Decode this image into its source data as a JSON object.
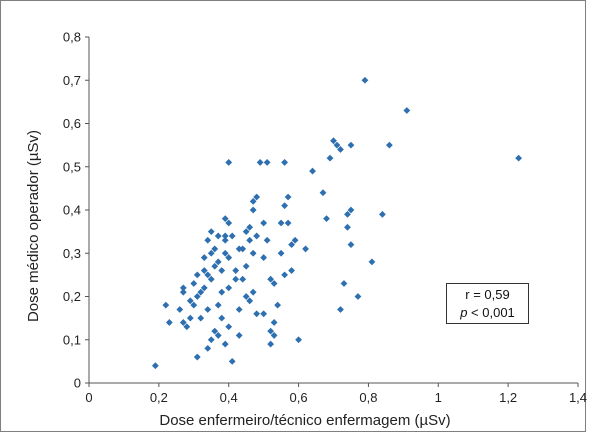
{
  "chart_data": {
    "type": "scatter",
    "title": "",
    "xlabel": "Dose enfermeiro/técnico enfermagem (µSv)",
    "ylabel": "Dose médico operador (µSv)",
    "xlim": [
      0,
      1.4
    ],
    "ylim": [
      0,
      0.8
    ],
    "xticks": [
      "0",
      "0,2",
      "0,4",
      "0,6",
      "0,8",
      "1",
      "1,2",
      "1,4"
    ],
    "yticks": [
      "0",
      "0,1",
      "0,2",
      "0,3",
      "0,4",
      "0,5",
      "0,6",
      "0,7",
      "0,8"
    ],
    "grid": false,
    "marker_color": "#2e6fb0",
    "annotation": {
      "r": "r = 0,59",
      "p_symbol": "p",
      "p_rest": " < 0,001"
    },
    "points": [
      [
        0.19,
        0.04
      ],
      [
        0.22,
        0.18
      ],
      [
        0.23,
        0.14
      ],
      [
        0.26,
        0.17
      ],
      [
        0.27,
        0.14
      ],
      [
        0.27,
        0.21
      ],
      [
        0.27,
        0.22
      ],
      [
        0.28,
        0.13
      ],
      [
        0.29,
        0.15
      ],
      [
        0.29,
        0.19
      ],
      [
        0.3,
        0.23
      ],
      [
        0.3,
        0.18
      ],
      [
        0.31,
        0.06
      ],
      [
        0.31,
        0.2
      ],
      [
        0.31,
        0.25
      ],
      [
        0.32,
        0.21
      ],
      [
        0.32,
        0.15
      ],
      [
        0.33,
        0.29
      ],
      [
        0.33,
        0.22
      ],
      [
        0.33,
        0.26
      ],
      [
        0.34,
        0.17
      ],
      [
        0.34,
        0.25
      ],
      [
        0.34,
        0.33
      ],
      [
        0.34,
        0.08
      ],
      [
        0.35,
        0.1
      ],
      [
        0.35,
        0.24
      ],
      [
        0.35,
        0.3
      ],
      [
        0.35,
        0.35
      ],
      [
        0.36,
        0.27
      ],
      [
        0.36,
        0.12
      ],
      [
        0.36,
        0.31
      ],
      [
        0.37,
        0.28
      ],
      [
        0.37,
        0.34
      ],
      [
        0.37,
        0.18
      ],
      [
        0.37,
        0.11
      ],
      [
        0.38,
        0.21
      ],
      [
        0.38,
        0.15
      ],
      [
        0.38,
        0.26
      ],
      [
        0.39,
        0.34
      ],
      [
        0.39,
        0.33
      ],
      [
        0.39,
        0.3
      ],
      [
        0.39,
        0.09
      ],
      [
        0.39,
        0.38
      ],
      [
        0.4,
        0.22
      ],
      [
        0.4,
        0.13
      ],
      [
        0.4,
        0.29
      ],
      [
        0.4,
        0.37
      ],
      [
        0.4,
        0.51
      ],
      [
        0.41,
        0.34
      ],
      [
        0.41,
        0.05
      ],
      [
        0.42,
        0.24
      ],
      [
        0.42,
        0.26
      ],
      [
        0.43,
        0.31
      ],
      [
        0.43,
        0.17
      ],
      [
        0.43,
        0.11
      ],
      [
        0.44,
        0.31
      ],
      [
        0.44,
        0.24
      ],
      [
        0.45,
        0.35
      ],
      [
        0.45,
        0.27
      ],
      [
        0.45,
        0.2
      ],
      [
        0.46,
        0.33
      ],
      [
        0.46,
        0.36
      ],
      [
        0.46,
        0.19
      ],
      [
        0.47,
        0.4
      ],
      [
        0.47,
        0.42
      ],
      [
        0.47,
        0.3
      ],
      [
        0.47,
        0.21
      ],
      [
        0.48,
        0.43
      ],
      [
        0.48,
        0.16
      ],
      [
        0.48,
        0.34
      ],
      [
        0.49,
        0.51
      ],
      [
        0.5,
        0.29
      ],
      [
        0.5,
        0.16
      ],
      [
        0.5,
        0.37
      ],
      [
        0.51,
        0.51
      ],
      [
        0.51,
        0.33
      ],
      [
        0.52,
        0.24
      ],
      [
        0.52,
        0.12
      ],
      [
        0.52,
        0.09
      ],
      [
        0.53,
        0.23
      ],
      [
        0.53,
        0.11
      ],
      [
        0.53,
        0.14
      ],
      [
        0.54,
        0.18
      ],
      [
        0.55,
        0.3
      ],
      [
        0.55,
        0.37
      ],
      [
        0.56,
        0.51
      ],
      [
        0.56,
        0.41
      ],
      [
        0.56,
        0.25
      ],
      [
        0.57,
        0.43
      ],
      [
        0.57,
        0.37
      ],
      [
        0.58,
        0.32
      ],
      [
        0.58,
        0.26
      ],
      [
        0.59,
        0.33
      ],
      [
        0.6,
        0.1
      ],
      [
        0.62,
        0.31
      ],
      [
        0.64,
        0.49
      ],
      [
        0.67,
        0.44
      ],
      [
        0.68,
        0.38
      ],
      [
        0.69,
        0.52
      ],
      [
        0.7,
        0.56
      ],
      [
        0.71,
        0.55
      ],
      [
        0.72,
        0.54
      ],
      [
        0.72,
        0.17
      ],
      [
        0.73,
        0.23
      ],
      [
        0.74,
        0.39
      ],
      [
        0.74,
        0.36
      ],
      [
        0.75,
        0.32
      ],
      [
        0.75,
        0.4
      ],
      [
        0.75,
        0.55
      ],
      [
        0.77,
        0.2
      ],
      [
        0.79,
        0.7
      ],
      [
        0.81,
        0.28
      ],
      [
        0.84,
        0.39
      ],
      [
        0.86,
        0.55
      ],
      [
        0.91,
        0.63
      ],
      [
        1.23,
        0.52
      ]
    ]
  }
}
